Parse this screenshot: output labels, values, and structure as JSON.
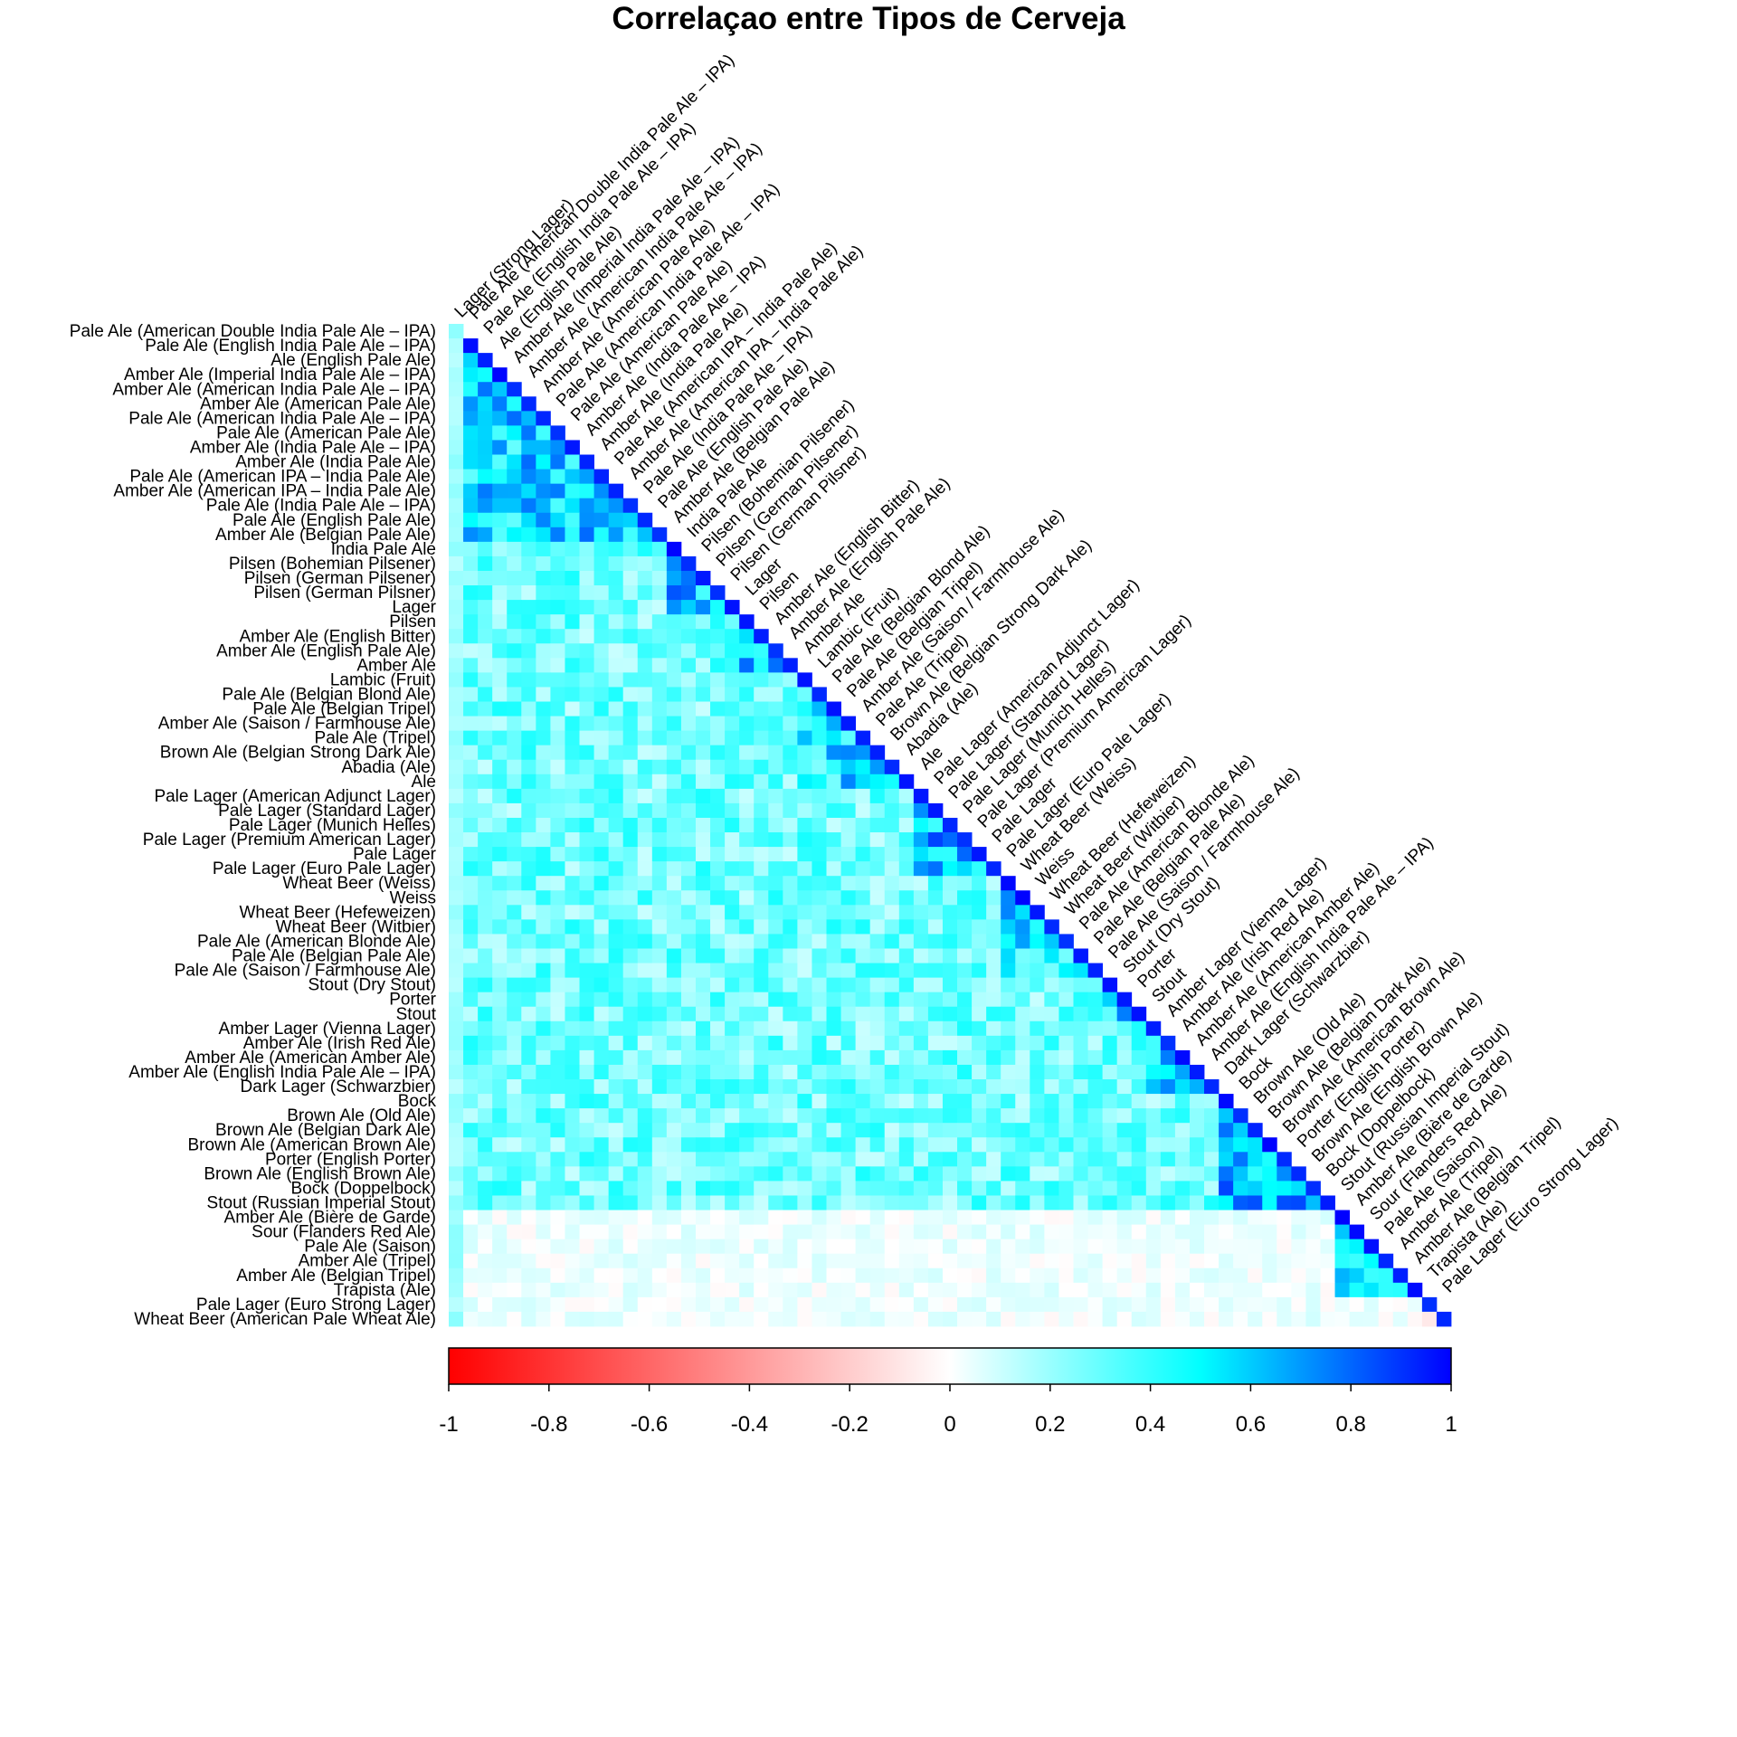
{
  "chart_data": {
    "type": "heatmap",
    "title": "Correlaçao entre Tipos de Cerveja",
    "xlabel": "",
    "ylabel": "",
    "layout": "lower-triangle",
    "value_range": [
      -1,
      1
    ],
    "colorbar": {
      "position": "bottom",
      "colors": [
        "#FF0000",
        "#FFFFFF",
        "#00FFFF",
        "#0000FF"
      ],
      "ticks": [
        -1,
        -0.8,
        -0.6,
        -0.4,
        -0.2,
        0,
        0.2,
        0.4,
        0.6,
        0.8,
        1
      ],
      "tick_labels": [
        "-1",
        "-0.8",
        "-0.6",
        "-0.4",
        "-0.2",
        "0",
        "0.2",
        "0.4",
        "0.6",
        "0.8",
        "1"
      ]
    },
    "row_labels": [
      "Pale Ale (American Double India Pale Ale – IPA)",
      "Pale Ale (English India Pale Ale – IPA)",
      "Ale (English Pale Ale)",
      "Amber Ale (Imperial India Pale Ale – IPA)",
      "Amber Ale (American India Pale Ale – IPA)",
      "Amber Ale (American Pale Ale)",
      "Pale Ale (American India Pale Ale – IPA)",
      "Pale Ale (American Pale Ale)",
      "Amber Ale (India Pale Ale – IPA)",
      "Amber Ale (India Pale Ale)",
      "Pale Ale (American IPA – India Pale Ale)",
      "Amber Ale (American IPA – India Pale Ale)",
      "Pale Ale (India Pale Ale – IPA)",
      "Pale Ale (English Pale Ale)",
      "Amber Ale (Belgian Pale Ale)",
      "India Pale Ale",
      "Pilsen (Bohemian Pilsener)",
      "Pilsen (German Pilsener)",
      "Pilsen (German Pilsner)",
      "Lager",
      "Pilsen",
      "Amber Ale (English Bitter)",
      "Amber Ale (English Pale Ale)",
      "Amber Ale",
      "Lambic (Fruit)",
      "Pale Ale (Belgian Blond Ale)",
      "Pale Ale (Belgian Tripel)",
      "Amber Ale (Saison / Farmhouse Ale)",
      "Pale Ale (Tripel)",
      "Brown Ale (Belgian Strong Dark Ale)",
      "Abadia (Ale)",
      "Ale",
      "Pale Lager (American Adjunct Lager)",
      "Pale Lager (Standard Lager)",
      "Pale Lager (Munich Helles)",
      "Pale Lager (Premium American Lager)",
      "Pale Lager",
      "Pale Lager (Euro Pale Lager)",
      "Wheat Beer (Weiss)",
      "Weiss",
      "Wheat Beer (Hefeweizen)",
      "Wheat Beer (Witbier)",
      "Pale Ale (American Blonde Ale)",
      "Pale Ale (Belgian Pale Ale)",
      "Pale Ale (Saison / Farmhouse Ale)",
      "Stout (Dry Stout)",
      "Porter",
      "Stout",
      "Amber Lager (Vienna Lager)",
      "Amber Ale (Irish Red Ale)",
      "Amber Ale (American Amber Ale)",
      "Amber Ale (English India Pale Ale – IPA)",
      "Dark Lager (Schwarzbier)",
      "Bock",
      "Brown Ale (Old Ale)",
      "Brown Ale (Belgian Dark Ale)",
      "Brown Ale (American Brown Ale)",
      "Porter (English Porter)",
      "Brown Ale (English Brown Ale)",
      "Bock (Doppelbock)",
      "Stout (Russian Imperial Stout)",
      "Amber Ale (Bière de Garde)",
      "Sour (Flanders Red Ale)",
      "Pale Ale (Saison)",
      "Amber Ale (Tripel)",
      "Amber Ale (Belgian Tripel)",
      "Trapista (Ale)",
      "Pale Lager (Euro Strong Lager)",
      "Wheat Beer (American Pale Wheat Ale)"
    ],
    "col_labels": [
      "Lager (Strong Lager)",
      "Pale Ale (American Double India Pale Ale – IPA)",
      "Pale Ale (English India Pale Ale – IPA)",
      "Ale (English Pale Ale)",
      "Amber Ale (Imperial India Pale Ale – IPA)",
      "Amber Ale (American India Pale Ale – IPA)",
      "Amber Ale (American Pale Ale)",
      "Pale Ale (American India Pale Ale – IPA)",
      "Pale Ale (American Pale Ale)",
      "Amber Ale (India Pale Ale – IPA)",
      "Amber Ale (India Pale Ale)",
      "Pale Ale (American IPA – India Pale Ale)",
      "Amber Ale (American IPA – India Pale Ale)",
      "Pale Ale (India Pale Ale – IPA)",
      "Pale Ale (English Pale Ale)",
      "Amber Ale (Belgian Pale Ale)",
      "India Pale Ale",
      "Pilsen (Bohemian Pilsener)",
      "Pilsen (German Pilsener)",
      "Pilsen (German Pilsner)",
      "Lager",
      "Pilsen",
      "Amber Ale (English Bitter)",
      "Amber Ale (English Pale Ale)",
      "Amber Ale",
      "Lambic (Fruit)",
      "Pale Ale (Belgian Blond Ale)",
      "Pale Ale (Belgian Tripel)",
      "Amber Ale (Saison / Farmhouse Ale)",
      "Pale Ale (Tripel)",
      "Brown Ale (Belgian Strong Dark Ale)",
      "Abadia (Ale)",
      "Ale",
      "Pale Lager (American Adjunct Lager)",
      "Pale Lager (Standard Lager)",
      "Pale Lager (Munich Helles)",
      "Pale Lager (Premium American Lager)",
      "Pale Lager",
      "Pale Lager (Euro Pale Lager)",
      "Wheat Beer (Weiss)",
      "Weiss",
      "Wheat Beer (Hefeweizen)",
      "Wheat Beer (Witbier)",
      "Pale Ale (American Blonde Ale)",
      "Pale Ale (Belgian Pale Ale)",
      "Pale Ale (Saison / Farmhouse Ale)",
      "Stout (Dry Stout)",
      "Porter",
      "Stout",
      "Amber Lager (Vienna Lager)",
      "Amber Ale (Irish Red Ale)",
      "Amber Ale (American Amber Ale)",
      "Amber Ale (English India Pale Ale – IPA)",
      "Dark Lager (Schwarzbier)",
      "Bock",
      "Brown Ale (Old Ale)",
      "Brown Ale (Belgian Dark Ale)",
      "Brown Ale (American Brown Ale)",
      "Porter (English Porter)",
      "Brown Ale (English Brown Ale)",
      "Bock (Doppelbock)",
      "Stout (Russian Imperial Stout)",
      "Amber Ale (Bière de Garde)",
      "Sour (Flanders Red Ale)",
      "Pale Ale (Saison)",
      "Amber Ale (Tripel)",
      "Amber Ale (Belgian Tripel)",
      "Trapista (Ale)",
      "Pale Lager (Euro Strong Lager)"
    ],
    "groups": [
      {
        "start": 0,
        "end": 15,
        "value": 0.55
      },
      {
        "start": 15,
        "end": 20,
        "value": 0.6
      },
      {
        "start": 20,
        "end": 24,
        "value": 0.55
      },
      {
        "start": 24,
        "end": 32,
        "value": 0.5
      },
      {
        "start": 32,
        "end": 38,
        "value": 0.62
      },
      {
        "start": 38,
        "end": 45,
        "value": 0.5
      },
      {
        "start": 45,
        "end": 48,
        "value": 0.55
      },
      {
        "start": 48,
        "end": 53,
        "value": 0.6
      },
      {
        "start": 53,
        "end": 61,
        "value": 0.62
      },
      {
        "start": 61,
        "end": 67,
        "value": 0.5
      },
      {
        "start": 67,
        "end": 69,
        "value": 0.05
      }
    ],
    "off_block_value": 0.28,
    "low_corr_rows_start": 61,
    "low_corr_value": 0.03
  }
}
